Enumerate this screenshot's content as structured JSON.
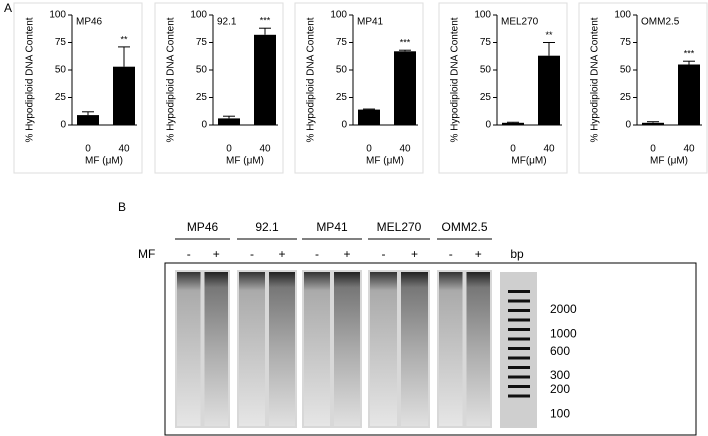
{
  "panel_labels": [
    "A",
    "B"
  ],
  "chart_data": [
    {
      "type": "bar",
      "title": "MP46",
      "categories": [
        "0",
        "40"
      ],
      "values": [
        9,
        53
      ],
      "errors": [
        3,
        18
      ],
      "annotations": [
        null,
        "**"
      ],
      "ylabel": "% Hypodiploid DNA Content",
      "xlabel": "MF (μM)",
      "ylim": [
        0,
        100
      ],
      "yticks": [
        0,
        25,
        50,
        75,
        100
      ],
      "color": "#000000"
    },
    {
      "type": "bar",
      "title": "92.1",
      "categories": [
        "0",
        "40"
      ],
      "values": [
        6,
        82
      ],
      "errors": [
        2,
        6
      ],
      "annotations": [
        null,
        "***"
      ],
      "ylabel": "% Hypodiploid DNA Content",
      "xlabel": "MF (μM)",
      "ylim": [
        0,
        100
      ],
      "yticks": [
        0,
        25,
        50,
        75,
        100
      ],
      "color": "#000000"
    },
    {
      "type": "bar",
      "title": "MP41",
      "categories": [
        "0",
        "40"
      ],
      "values": [
        14,
        67
      ],
      "errors": [
        0.5,
        1
      ],
      "annotations": [
        null,
        "***"
      ],
      "ylabel": "% Hypodiploid DNA Content",
      "xlabel": "MF (μM)",
      "ylim": [
        0,
        100
      ],
      "yticks": [
        0,
        25,
        50,
        75,
        100
      ],
      "color": "#000000"
    },
    {
      "type": "bar",
      "title": "MEL270",
      "categories": [
        "0",
        "40"
      ],
      "values": [
        2,
        63
      ],
      "errors": [
        0.5,
        12
      ],
      "annotations": [
        null,
        "**"
      ],
      "ylabel": "% Hypodiploid DNA Content",
      "xlabel": "MF(μM)",
      "ylim": [
        0,
        100
      ],
      "yticks": [
        0,
        25,
        50,
        75,
        100
      ],
      "color": "#000000"
    },
    {
      "type": "bar",
      "title": "OMM2.5",
      "categories": [
        "0",
        "40"
      ],
      "values": [
        2,
        55
      ],
      "errors": [
        1,
        3
      ],
      "annotations": [
        null,
        "***"
      ],
      "ylabel": "% Hypodiploid DNA Content",
      "xlabel": "MF (μM)",
      "ylim": [
        0,
        100
      ],
      "yticks": [
        0,
        25,
        50,
        75,
        100
      ],
      "color": "#000000"
    }
  ],
  "gel": {
    "mf_label": "MF",
    "bp_label": "bp",
    "lanes": [
      {
        "name": "MP46",
        "signs": [
          "-",
          "+"
        ]
      },
      {
        "name": "92.1",
        "signs": [
          "-",
          "+"
        ]
      },
      {
        "name": "MP41",
        "signs": [
          "-",
          "+"
        ]
      },
      {
        "name": "MEL270",
        "signs": [
          "-",
          "+"
        ]
      },
      {
        "name": "OMM2.5",
        "signs": [
          "-",
          "+"
        ]
      }
    ],
    "ladder": [
      2000,
      1000,
      600,
      300,
      200,
      100
    ]
  }
}
